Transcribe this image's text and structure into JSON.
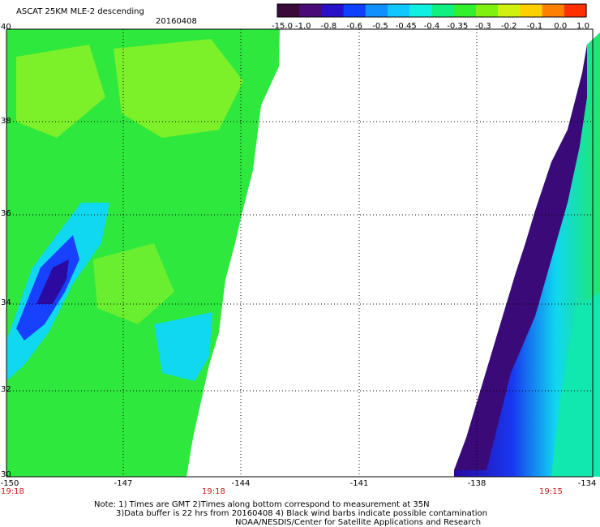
{
  "header": {
    "title": "ASCAT 25KM MLE-2 descending",
    "date": "20160408"
  },
  "colorbar": {
    "labels": [
      "-15.0",
      "-1.0",
      "-0.8",
      "-0.6",
      "-0.5",
      "-0.45",
      "-0.4",
      "-0.35",
      "-0.3",
      "-0.2",
      "-0.1",
      "0.0",
      "1.0"
    ],
    "colors": [
      "#3a0a3a",
      "#4a0a78",
      "#2a10c8",
      "#1040ff",
      "#1090ff",
      "#10c8ff",
      "#10f0e0",
      "#10f080",
      "#30f030",
      "#80f010",
      "#d0f010",
      "#ffd000",
      "#ff8000",
      "#ff3000"
    ]
  },
  "map": {
    "lat_labels": [
      "40",
      "38",
      "36",
      "34",
      "32",
      "30"
    ],
    "lon_labels": [
      "-150",
      "-147",
      "-144",
      "-141",
      "-138",
      "-134"
    ],
    "times": [
      "19:18",
      "19:18",
      "19:15"
    ]
  },
  "footer": {
    "note_line1": "Note: 1) Times are GMT 2)Times along bottom correspond to measurement at 35N",
    "note_line2": "3)Data buffer is 22 hrs from 20160408 4) Black wind barbs indicate possible contamination",
    "note_line3": "NOAA/NESDIS/Center for Satellite Applications and Research"
  }
}
